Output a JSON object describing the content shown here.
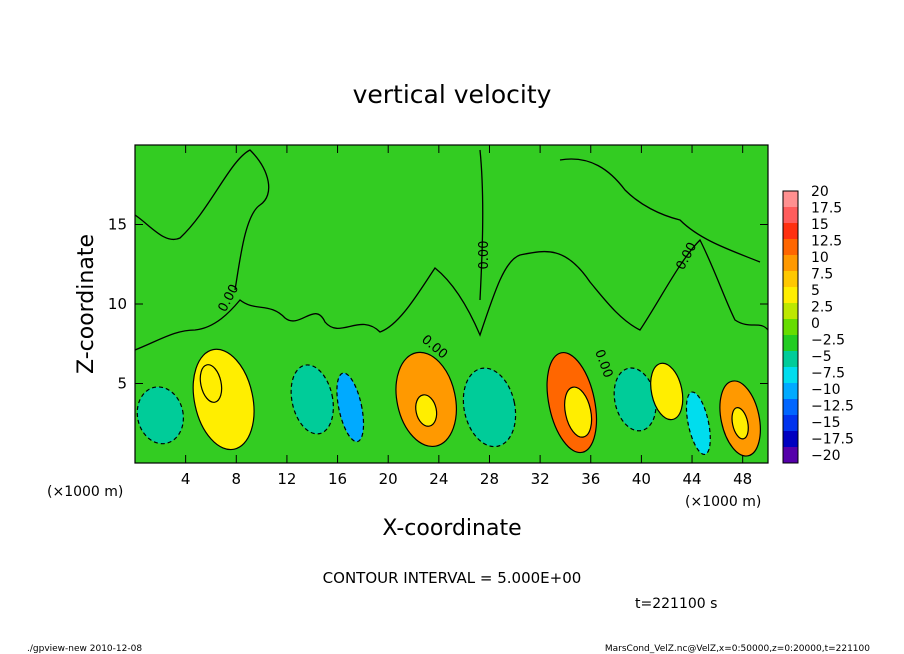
{
  "chart_data": {
    "type": "heatmap",
    "title": "vertical velocity",
    "xlabel": "X-coordinate",
    "ylabel": "Z-coordinate",
    "x_unit_label": "(×1000 m)",
    "y_unit_label": "(×1000 m)",
    "xlim": [
      0,
      50
    ],
    "ylim": [
      0,
      20
    ],
    "x_ticks": [
      4,
      8,
      12,
      16,
      20,
      24,
      28,
      32,
      36,
      40,
      44,
      48
    ],
    "y_ticks": [
      5,
      10,
      15
    ],
    "contour_label": "0.00",
    "contour_interval_text": "CONTOUR INTERVAL = 5.000E+00",
    "time_text": "t=221100 s",
    "colorbar": {
      "labels": [
        "20",
        "17.5",
        "15",
        "12.5",
        "10",
        "7.5",
        "5",
        "2.5",
        "0",
        "−2.5",
        "−5",
        "−7.5",
        "−10",
        "−12.5",
        "−15",
        "−17.5",
        "−20"
      ],
      "colors": [
        "#ff9090",
        "#ff5c5c",
        "#ff3010",
        "#ff6600",
        "#ff9900",
        "#ffc800",
        "#ffee00",
        "#bde800",
        "#66dd00",
        "#22cc22",
        "#00cc99",
        "#00ddee",
        "#00aaff",
        "#0066ff",
        "#0033ee",
        "#0000c0",
        "#5500aa"
      ]
    },
    "cells": [
      {
        "xc": 7.0,
        "zc": 4.0,
        "rx": 2.3,
        "rz": 3.2,
        "w": 6
      },
      {
        "xc": 6.0,
        "zc": 5.0,
        "rx": 0.8,
        "rz": 1.2,
        "w": 4
      },
      {
        "xc": 2.0,
        "zc": 3.0,
        "rx": 1.8,
        "rz": 1.8,
        "w": -5
      },
      {
        "xc": 14.0,
        "zc": 4.0,
        "rx": 1.6,
        "rz": 2.2,
        "w": -5
      },
      {
        "xc": 17.0,
        "zc": 3.5,
        "rx": 0.9,
        "rz": 2.2,
        "w": -10
      },
      {
        "xc": 23.0,
        "zc": 4.0,
        "rx": 2.3,
        "rz": 3.0,
        "w": 9
      },
      {
        "xc": 23.0,
        "zc": 3.3,
        "rx": 0.8,
        "rz": 1.0,
        "w": 6
      },
      {
        "xc": 28.0,
        "zc": 3.5,
        "rx": 2.0,
        "rz": 2.5,
        "w": -6
      },
      {
        "xc": 34.5,
        "zc": 3.8,
        "rx": 1.8,
        "rz": 3.2,
        "w": 12
      },
      {
        "xc": 35.0,
        "zc": 3.2,
        "rx": 1.0,
        "rz": 1.6,
        "w": 6
      },
      {
        "xc": 39.5,
        "zc": 4.0,
        "rx": 1.6,
        "rz": 2.0,
        "w": -5
      },
      {
        "xc": 42.0,
        "zc": 4.5,
        "rx": 1.2,
        "rz": 1.8,
        "w": 5
      },
      {
        "xc": 44.5,
        "zc": 2.5,
        "rx": 0.8,
        "rz": 2.0,
        "w": -7
      },
      {
        "xc": 47.8,
        "zc": 2.8,
        "rx": 1.5,
        "rz": 2.4,
        "w": 9
      },
      {
        "xc": 47.8,
        "zc": 2.5,
        "rx": 0.6,
        "rz": 1.0,
        "w": 5
      }
    ]
  },
  "footer": {
    "left": "./gpview-new   2010-12-08",
    "right": "MarsCond_VelZ.nc@VelZ,x=0:50000,z=0:20000,t=221100"
  }
}
